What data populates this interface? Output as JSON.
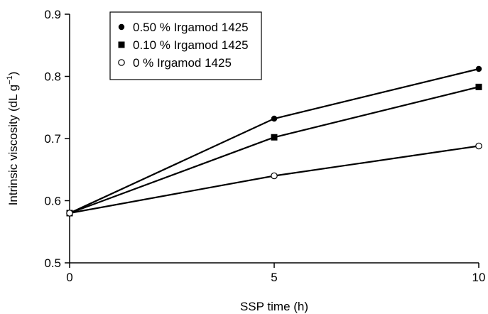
{
  "chart_data": {
    "type": "line",
    "title": "",
    "xlabel": "SSP time (h)",
    "ylabel": "Intrinsic viscosity (dL g",
    "ylabel_unit_superscript": "−1",
    "ylabel_close": ")",
    "xlim": [
      0,
      10
    ],
    "ylim": [
      0.5,
      0.9
    ],
    "x_ticks": [
      0,
      5,
      10
    ],
    "y_ticks": [
      0.5,
      0.6,
      0.7,
      0.8,
      0.9
    ],
    "x_tick_labels": [
      "0",
      "5",
      "10"
    ],
    "y_tick_labels": [
      "0.5",
      "0.6",
      "0.7",
      "0.8",
      "0.9"
    ],
    "grid": false,
    "legend_position": "top-left",
    "x": [
      0,
      5,
      10
    ],
    "series": [
      {
        "name": "0.50 % Irgamod 1425",
        "marker": "filled-circle",
        "values": [
          0.58,
          0.732,
          0.812
        ]
      },
      {
        "name": "0.10 % Irgamod 1425",
        "marker": "filled-square",
        "values": [
          0.58,
          0.702,
          0.783
        ]
      },
      {
        "name": "0 % Irgamod 1425",
        "marker": "open-circle",
        "values": [
          0.58,
          0.64,
          0.688
        ]
      }
    ]
  }
}
